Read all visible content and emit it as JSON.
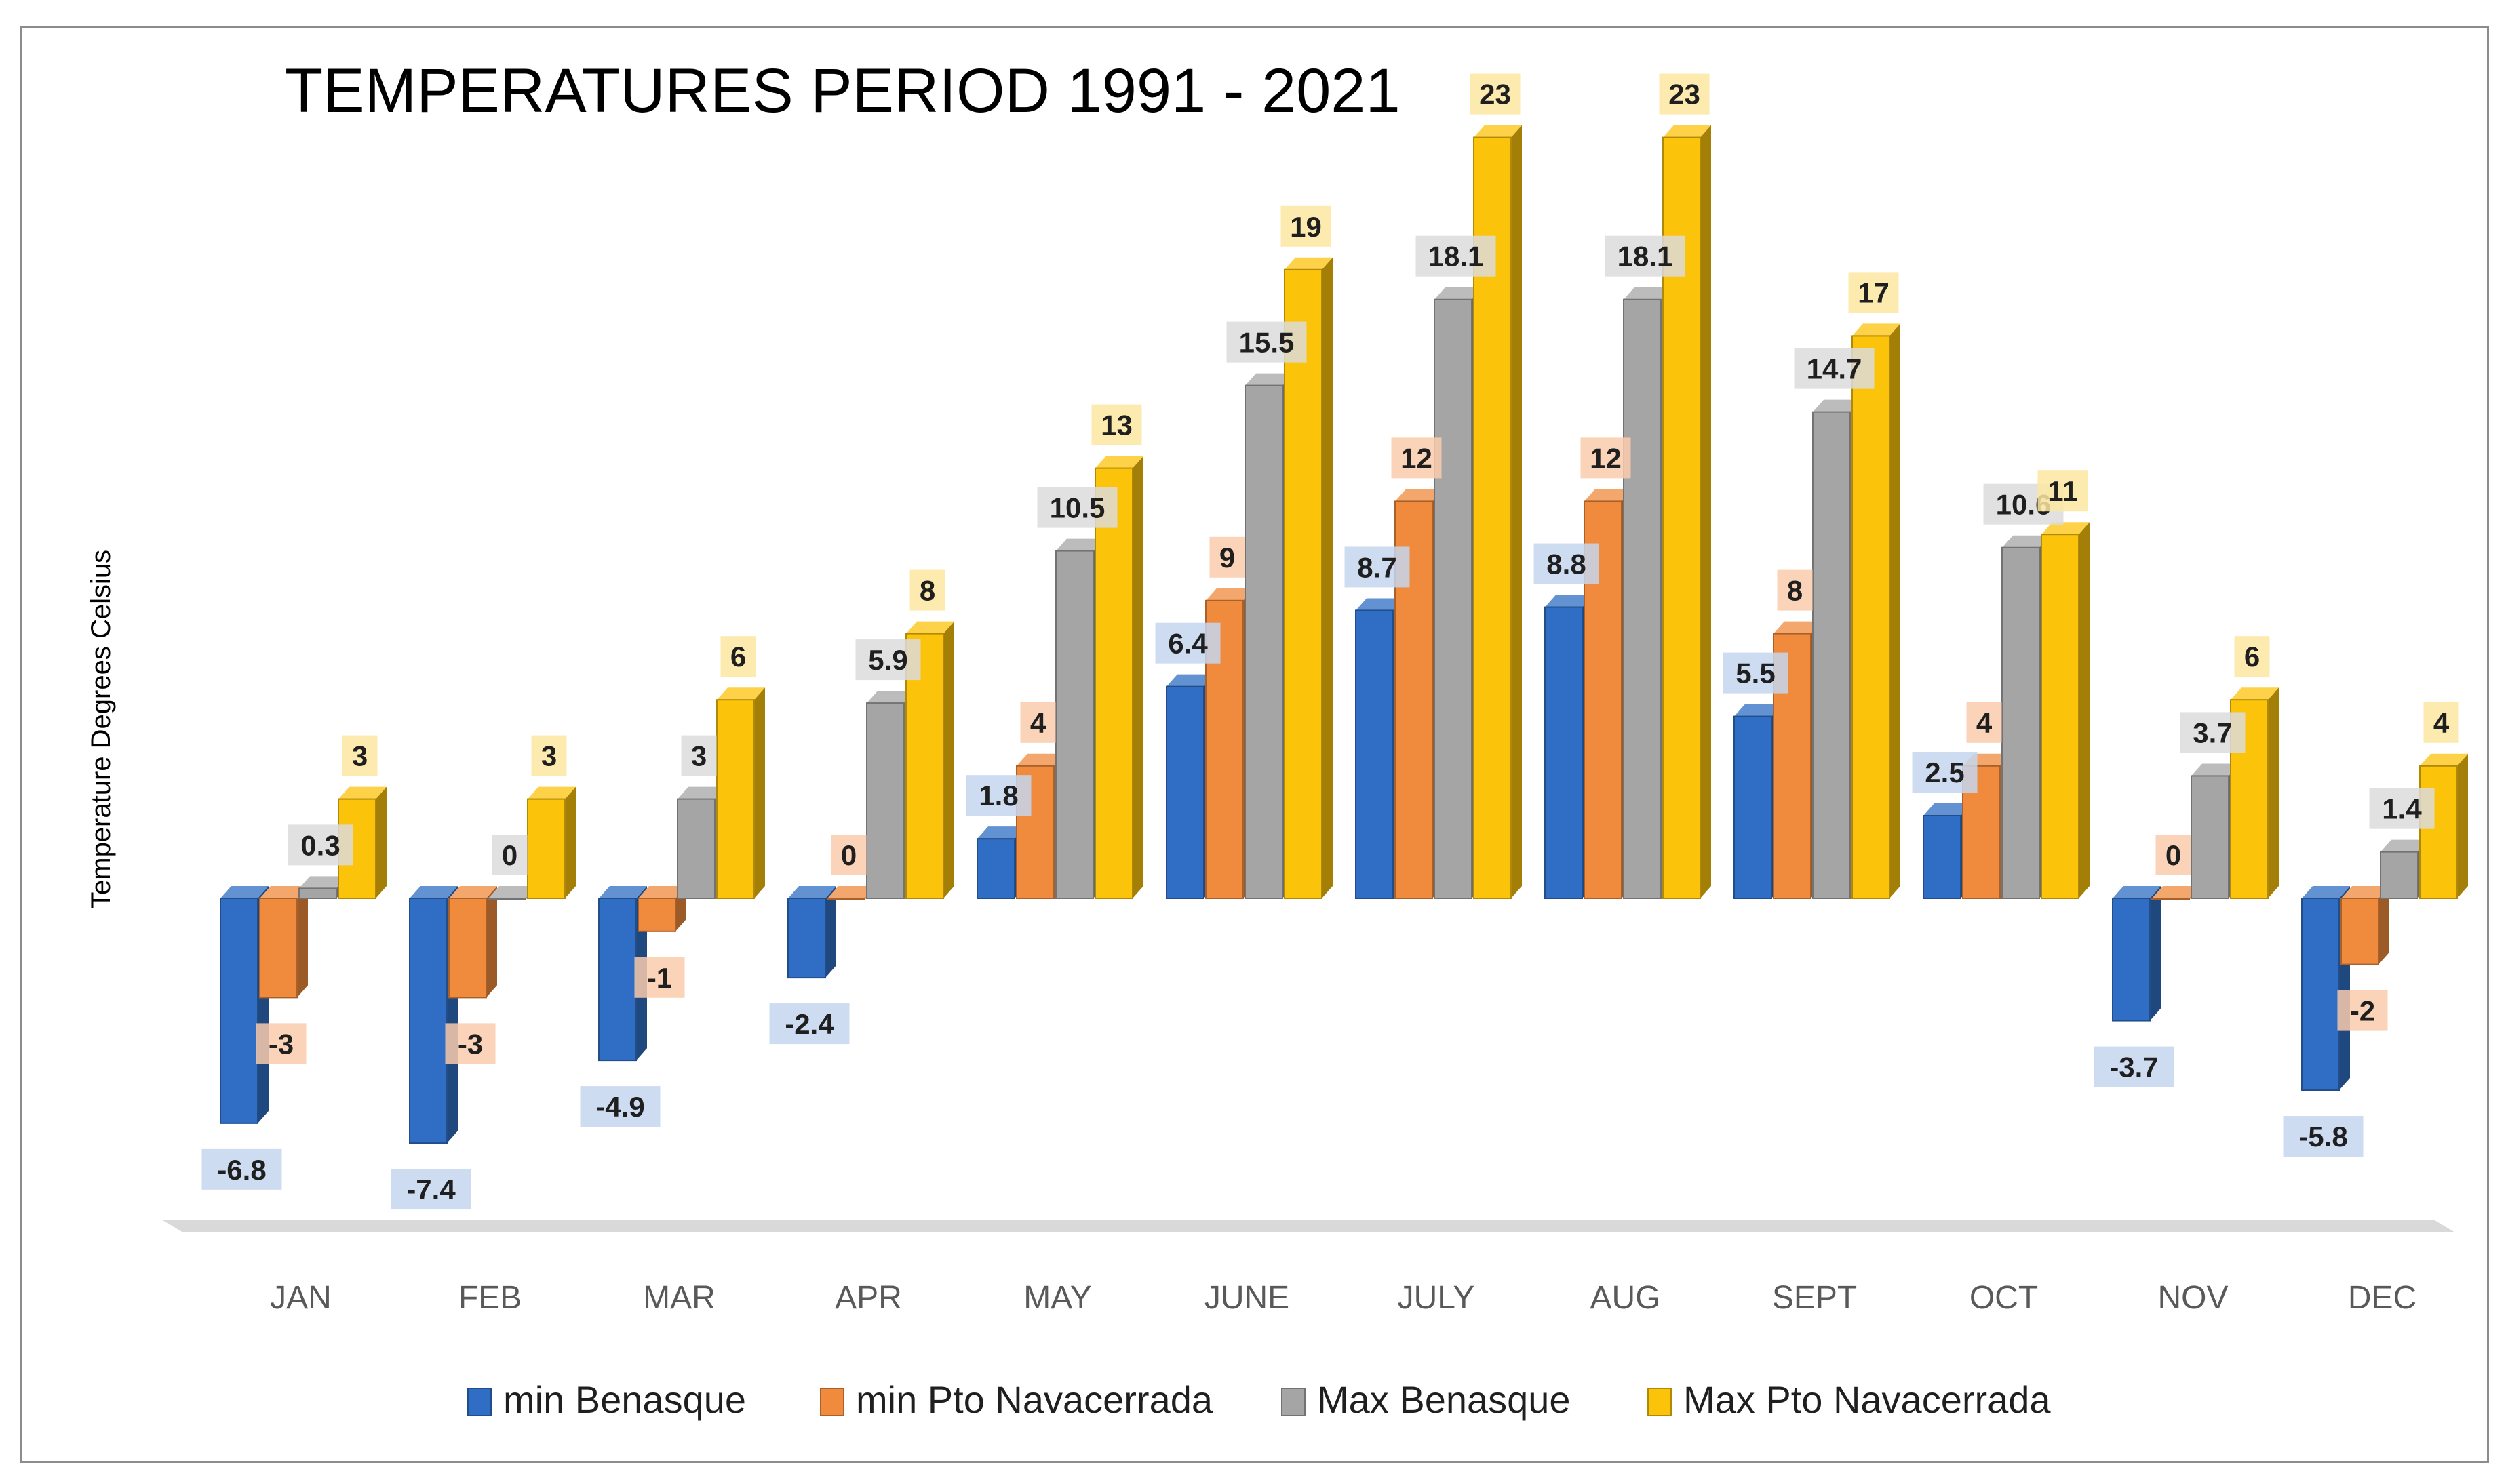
{
  "chart_data": {
    "type": "bar",
    "title": "TEMPERATURES PERIOD 1991 - 2021",
    "ylabel": "Temperature Degrees Celsius",
    "xlabel": "",
    "ylim": [
      -10,
      25
    ],
    "categories": [
      "JAN",
      "FEB",
      "MAR",
      "APR",
      "MAY",
      "JUNE",
      "JULY",
      "AUG",
      "SEPT",
      "OCT",
      "NOV",
      "DEC"
    ],
    "series": [
      {
        "name": "min Benasque",
        "color": "#2f6ec4",
        "values": [
          -6.8,
          -7.4,
          -4.9,
          -2.4,
          1.8,
          6.4,
          8.7,
          8.8,
          5.5,
          2.5,
          -3.7,
          -5.8
        ]
      },
      {
        "name": "min Pto Navacerrada",
        "color": "#f08a3c",
        "values": [
          -3,
          -3,
          -1,
          0,
          4,
          9,
          12,
          12,
          8,
          4,
          0,
          -2
        ]
      },
      {
        "name": "Max Benasque",
        "color": "#a5a5a5",
        "values": [
          0.3,
          0,
          3,
          5.9,
          10.5,
          15.5,
          18.1,
          18.1,
          14.7,
          10.6,
          3.7,
          1.4
        ]
      },
      {
        "name": "Max Pto Navacerrada",
        "color": "#fcc30b",
        "values": [
          3,
          3,
          6,
          8,
          13,
          19,
          23,
          23,
          17,
          11,
          6,
          4
        ]
      }
    ],
    "grid": false,
    "legend_position": "bottom"
  }
}
